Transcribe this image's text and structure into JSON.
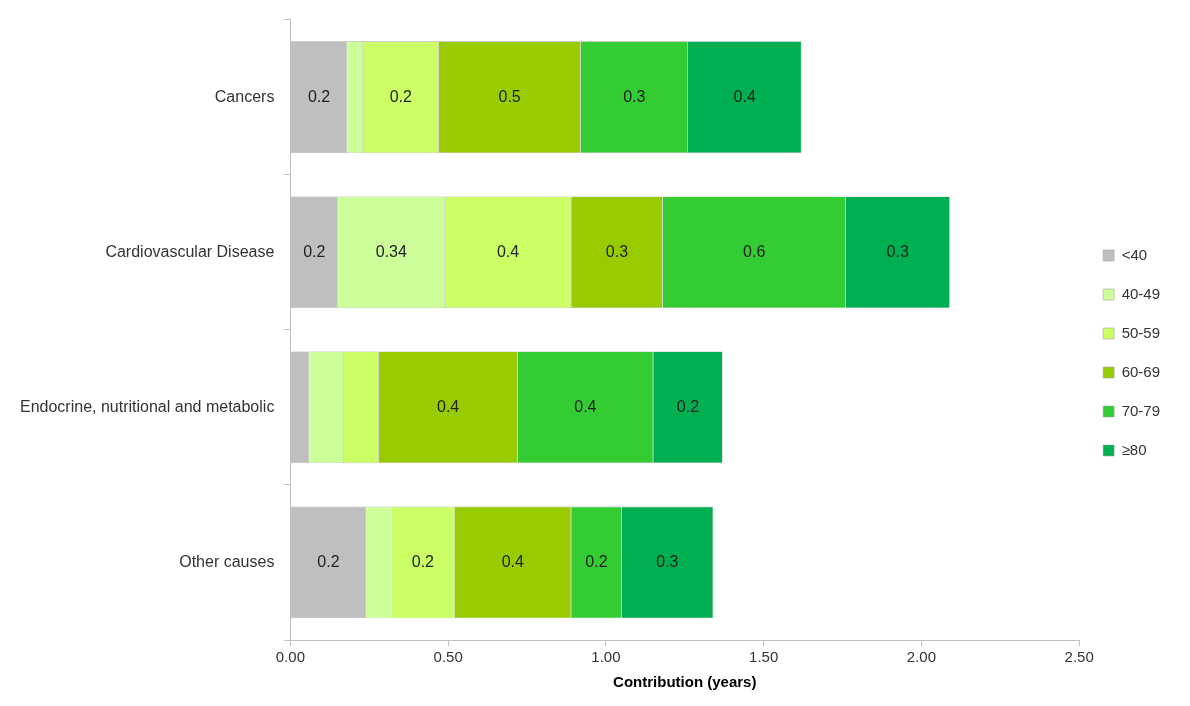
{
  "chart_data": {
    "type": "bar",
    "orientation": "horizontal",
    "stacked": true,
    "xlabel": "Contribution (years)",
    "categories": [
      "Cancers",
      "Cardiovascular Disease",
      "Endocrine, nutritional and metabolic",
      "Other causes"
    ],
    "series": [
      {
        "name": "<40",
        "color": "#bfbfbf",
        "values": [
          0.18,
          0.15,
          0.06,
          0.24
        ],
        "value_labels": [
          "0.2",
          "0.2",
          null,
          "0.2"
        ]
      },
      {
        "name": "40-49",
        "color": "#ccff99",
        "values": [
          0.05,
          0.34,
          0.11,
          0.08
        ],
        "value_labels": [
          null,
          "0.34",
          null,
          null
        ]
      },
      {
        "name": "50-59",
        "color": "#ccff66",
        "values": [
          0.24,
          0.4,
          0.11,
          0.2
        ],
        "value_labels": [
          "0.2",
          "0.4",
          null,
          "0.2"
        ]
      },
      {
        "name": "60-69",
        "color": "#99cc00",
        "values": [
          0.45,
          0.29,
          0.44,
          0.37
        ],
        "value_labels": [
          "0.5",
          "0.3",
          "0.4",
          "0.4"
        ]
      },
      {
        "name": "70-79",
        "color": "#33cc33",
        "values": [
          0.34,
          0.58,
          0.43,
          0.16
        ],
        "value_labels": [
          "0.3",
          "0.6",
          "0.4",
          "0.2"
        ]
      },
      {
        "name": "≥80",
        "color": "#00b050",
        "values": [
          0.36,
          0.33,
          0.22,
          0.29
        ],
        "value_labels": [
          "0.4",
          "0.3",
          "0.2",
          "0.3"
        ]
      }
    ],
    "xlim": [
      0,
      2.5
    ],
    "xticks": [
      {
        "value": 0,
        "label": "0.00"
      },
      {
        "value": 0.5,
        "label": "0.50"
      },
      {
        "value": 1,
        "label": "1.00"
      },
      {
        "value": 1.5,
        "label": "1.50"
      },
      {
        "value": 2,
        "label": "2.00"
      },
      {
        "value": 2.5,
        "label": "2.50"
      }
    ],
    "grid": false,
    "legend": "right"
  }
}
